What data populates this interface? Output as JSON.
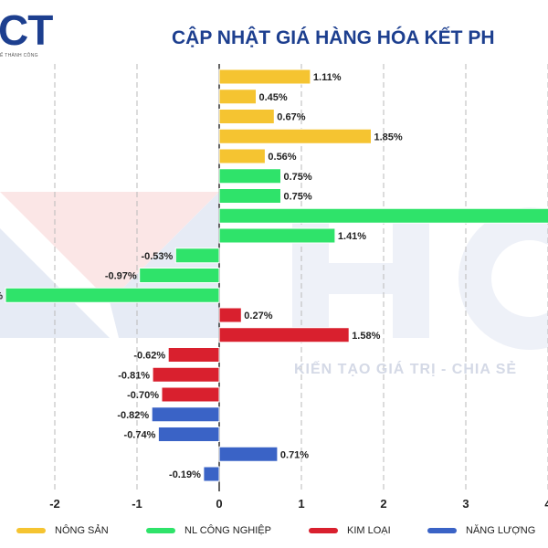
{
  "header": {
    "logo_text": "CT",
    "logo_sub": "Ế THÀNH CÔNG",
    "title": "CẬP NHẬT GIÁ HÀNG HÓA KẾT PH"
  },
  "watermark": {
    "text": "KIẾN TẠO GIÁ TRỊ - CHIA SẺ"
  },
  "colors": {
    "nong_san": "#f5c431",
    "nl_cong_nghiep": "#2fe36a",
    "kim_loai": "#d9202e",
    "nang_luong": "#3a63c6"
  },
  "legend": [
    {
      "label": "NÔNG SẢN",
      "color": "#f5c431"
    },
    {
      "label": "NL CÔNG NGHIỆP",
      "color": "#2fe36a"
    },
    {
      "label": "KIM LOẠI",
      "color": "#d9202e"
    },
    {
      "label": "NĂNG LƯỢNG",
      "color": "#3a63c6"
    }
  ],
  "chart_data": {
    "type": "bar",
    "orientation": "horizontal",
    "xlim": [
      -2.7,
      4.0
    ],
    "ticks": [
      -2,
      -1,
      0,
      1,
      2,
      3,
      4
    ],
    "tick_labels": [
      "-2",
      "-1",
      "0",
      "1",
      "2",
      "3",
      "4"
    ],
    "grid": true,
    "legend_position": "bottom",
    "bars": [
      {
        "value": 1.11,
        "label": "1.11%",
        "group": "nong_san"
      },
      {
        "value": 0.45,
        "label": "0.45%",
        "group": "nong_san"
      },
      {
        "value": 0.67,
        "label": "0.67%",
        "group": "nong_san"
      },
      {
        "value": 1.85,
        "label": "1.85%",
        "group": "nong_san"
      },
      {
        "value": 0.56,
        "label": "0.56%",
        "group": "nong_san"
      },
      {
        "value": 0.75,
        "label": "0.75%",
        "group": "nl_cong_nghiep"
      },
      {
        "value": 0.75,
        "label": "0.75%",
        "group": "nl_cong_nghiep"
      },
      {
        "value": 4.2,
        "label": "",
        "group": "nl_cong_nghiep"
      },
      {
        "value": 1.41,
        "label": "1.41%",
        "group": "nl_cong_nghiep"
      },
      {
        "value": -0.53,
        "label": "-0.53%",
        "group": "nl_cong_nghiep"
      },
      {
        "value": -0.97,
        "label": "-0.97%",
        "group": "nl_cong_nghiep"
      },
      {
        "value": -2.6,
        "label": "%",
        "group": "nl_cong_nghiep"
      },
      {
        "value": 0.27,
        "label": "0.27%",
        "group": "kim_loai"
      },
      {
        "value": 1.58,
        "label": "1.58%",
        "group": "kim_loai"
      },
      {
        "value": -0.62,
        "label": "-0.62%",
        "group": "kim_loai"
      },
      {
        "value": -0.81,
        "label": "-0.81%",
        "group": "kim_loai"
      },
      {
        "value": -0.7,
        "label": "-0.70%",
        "group": "kim_loai"
      },
      {
        "value": -0.82,
        "label": "-0.82%",
        "group": "nang_luong"
      },
      {
        "value": -0.74,
        "label": "-0.74%",
        "group": "nang_luong"
      },
      {
        "value": 0.71,
        "label": "0.71%",
        "group": "nang_luong"
      },
      {
        "value": -0.19,
        "label": "-0.19%",
        "group": "nang_luong"
      }
    ]
  }
}
